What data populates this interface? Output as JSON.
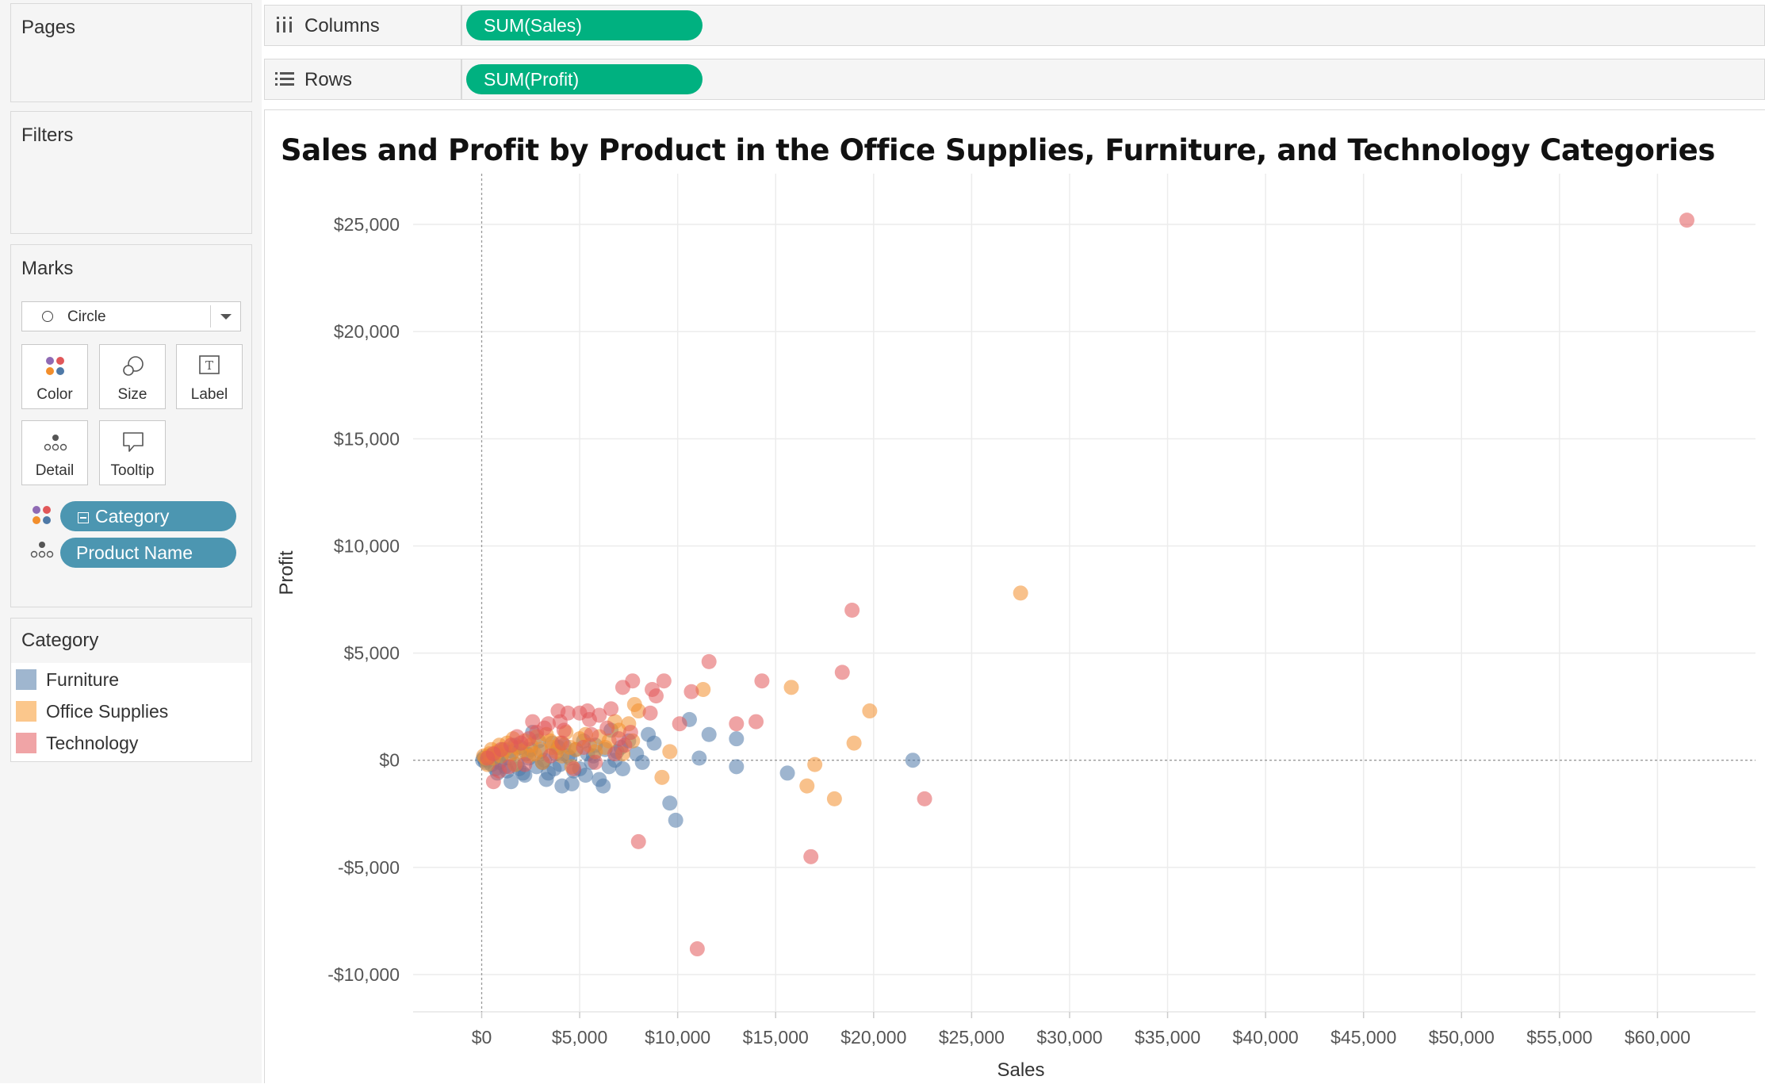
{
  "pages": {
    "title": "Pages"
  },
  "filters": {
    "title": "Filters"
  },
  "marks": {
    "title": "Marks",
    "mark_type": "Circle",
    "buttons": {
      "color": "Color",
      "size": "Size",
      "label": "Label",
      "detail": "Detail",
      "tooltip": "Tooltip"
    },
    "fields": {
      "color_field": "Category",
      "detail_field": "Product Name"
    }
  },
  "legend": {
    "title": "Category",
    "items": [
      {
        "label": "Furniture",
        "color": "#9fb6cf"
      },
      {
        "label": "Office Supplies",
        "color": "#fbc78c"
      },
      {
        "label": "Technology",
        "color": "#f0a4a6"
      }
    ]
  },
  "shelves": {
    "columns_label": "Columns",
    "columns_pill": "SUM(Sales)",
    "rows_label": "Rows",
    "rows_pill": "SUM(Profit)"
  },
  "colors": {
    "furniture": "#4e79a7",
    "office_supplies": "#f28e2b",
    "technology": "#e15759",
    "pill_green": "#00b180",
    "pill_teal": "#4c96b1"
  },
  "chart_data": {
    "type": "scatter",
    "title": "Sales and Profit by Product in the Office Supplies, Furniture, and Technology Categories",
    "xlabel": "Sales",
    "ylabel": "Profit",
    "xlim": [
      -3500,
      65000
    ],
    "ylim": [
      -11000,
      27000
    ],
    "x_ticks": [
      0,
      5000,
      10000,
      15000,
      20000,
      25000,
      30000,
      35000,
      40000,
      45000,
      50000,
      55000,
      60000
    ],
    "x_tick_labels": [
      "$0",
      "$5,000",
      "$10,000",
      "$15,000",
      "$20,000",
      "$25,000",
      "$30,000",
      "$35,000",
      "$40,000",
      "$45,000",
      "$50,000",
      "$55,000",
      "$60,000"
    ],
    "y_ticks": [
      -10000,
      -5000,
      0,
      5000,
      10000,
      15000,
      20000,
      25000
    ],
    "y_tick_labels": [
      "-$10,000",
      "-$5,000",
      "$0",
      "$5,000",
      "$10,000",
      "$15,000",
      "$20,000",
      "$25,000"
    ],
    "grid": true,
    "series": [
      {
        "name": "Furniture",
        "color": "#4e79a7",
        "points": [
          [
            22000,
            0
          ],
          [
            11600,
            1200
          ],
          [
            13000,
            1000
          ],
          [
            13000,
            -300
          ],
          [
            15600,
            -600
          ],
          [
            10600,
            1900
          ],
          [
            11100,
            100
          ],
          [
            9600,
            -2000
          ],
          [
            9900,
            -2800
          ],
          [
            8800,
            800
          ],
          [
            8500,
            1200
          ],
          [
            8200,
            -100
          ],
          [
            7900,
            300
          ],
          [
            7500,
            900
          ],
          [
            7200,
            -400
          ],
          [
            6800,
            0
          ],
          [
            6600,
            1400
          ],
          [
            6300,
            500
          ],
          [
            6000,
            -900
          ],
          [
            6200,
            -1200
          ],
          [
            5800,
            700
          ],
          [
            5600,
            -100
          ],
          [
            5400,
            300
          ],
          [
            5200,
            900
          ],
          [
            5000,
            -400
          ],
          [
            4800,
            500
          ],
          [
            4600,
            -1100
          ],
          [
            4400,
            200
          ],
          [
            4200,
            700
          ],
          [
            4000,
            -200
          ],
          [
            3800,
            300
          ],
          [
            3600,
            800
          ],
          [
            3400,
            -600
          ],
          [
            3200,
            0
          ],
          [
            3000,
            400
          ],
          [
            2800,
            -300
          ],
          [
            2600,
            1300
          ],
          [
            2400,
            100
          ],
          [
            2200,
            -700
          ],
          [
            2000,
            600
          ],
          [
            1800,
            -200
          ],
          [
            1600,
            400
          ],
          [
            1500,
            -1000
          ],
          [
            1400,
            100
          ],
          [
            1200,
            -300
          ],
          [
            1000,
            200
          ],
          [
            900,
            -100
          ],
          [
            800,
            300
          ],
          [
            700,
            -400
          ],
          [
            600,
            100
          ],
          [
            500,
            -200
          ],
          [
            400,
            200
          ],
          [
            300,
            0
          ],
          [
            200,
            -100
          ],
          [
            100,
            100
          ],
          [
            50,
            0
          ],
          [
            3300,
            -900
          ],
          [
            4100,
            -1200
          ],
          [
            5300,
            -700
          ],
          [
            6500,
            -300
          ],
          [
            7100,
            600
          ],
          [
            2900,
            900
          ],
          [
            3700,
            -400
          ],
          [
            4500,
            100
          ],
          [
            2100,
            -600
          ],
          [
            1700,
            700
          ],
          [
            1300,
            -500
          ],
          [
            2500,
            500
          ],
          [
            3100,
            -100
          ],
          [
            3900,
            600
          ],
          [
            4700,
            -500
          ],
          [
            5700,
            200
          ],
          [
            6900,
            400
          ],
          [
            1100,
            500
          ],
          [
            2300,
            300
          ],
          [
            800,
            -600
          ],
          [
            1900,
            -400
          ]
        ]
      },
      {
        "name": "Office Supplies",
        "color": "#f28e2b",
        "points": [
          [
            27500,
            7800
          ],
          [
            15800,
            3400
          ],
          [
            19800,
            2300
          ],
          [
            19000,
            800
          ],
          [
            17000,
            -200
          ],
          [
            16600,
            -1200
          ],
          [
            18000,
            -1800
          ],
          [
            11300,
            3300
          ],
          [
            9600,
            400
          ],
          [
            9200,
            -800
          ],
          [
            8000,
            2300
          ],
          [
            7800,
            2600
          ],
          [
            7500,
            1700
          ],
          [
            7000,
            1400
          ],
          [
            6500,
            900
          ],
          [
            6000,
            1100
          ],
          [
            5500,
            700
          ],
          [
            5000,
            1000
          ],
          [
            4500,
            600
          ],
          [
            4000,
            800
          ],
          [
            3500,
            900
          ],
          [
            3000,
            500
          ],
          [
            2500,
            700
          ],
          [
            2000,
            400
          ],
          [
            1800,
            600
          ],
          [
            1500,
            300
          ],
          [
            1200,
            500
          ],
          [
            1000,
            200
          ],
          [
            800,
            400
          ],
          [
            600,
            100
          ],
          [
            400,
            300
          ],
          [
            200,
            100
          ],
          [
            100,
            200
          ],
          [
            2200,
            900
          ],
          [
            2800,
            1100
          ],
          [
            3300,
            1200
          ],
          [
            3800,
            400
          ],
          [
            4300,
            1300
          ],
          [
            4800,
            500
          ],
          [
            5300,
            1200
          ],
          [
            5800,
            400
          ],
          [
            6300,
            600
          ],
          [
            6800,
            1800
          ],
          [
            7200,
            300
          ],
          [
            1300,
            800
          ],
          [
            1700,
            -200
          ],
          [
            2400,
            200
          ],
          [
            3100,
            -100
          ],
          [
            4100,
            200
          ],
          [
            900,
            700
          ],
          [
            1600,
            1000
          ],
          [
            2700,
            300
          ],
          [
            3600,
            600
          ],
          [
            500,
            500
          ],
          [
            300,
            -200
          ],
          [
            4600,
            -300
          ],
          [
            7700,
            900
          ]
        ]
      },
      {
        "name": "Technology",
        "color": "#e15759",
        "points": [
          [
            61500,
            25200
          ],
          [
            18900,
            7000
          ],
          [
            18400,
            4100
          ],
          [
            22600,
            -1800
          ],
          [
            16800,
            -4500
          ],
          [
            11000,
            -8800
          ],
          [
            8000,
            -3800
          ],
          [
            14300,
            3700
          ],
          [
            14000,
            1800
          ],
          [
            13000,
            1700
          ],
          [
            11600,
            4600
          ],
          [
            10700,
            3200
          ],
          [
            10100,
            1700
          ],
          [
            9300,
            3700
          ],
          [
            8900,
            3000
          ],
          [
            8700,
            3300
          ],
          [
            8600,
            2200
          ],
          [
            7700,
            3700
          ],
          [
            7200,
            3400
          ],
          [
            7000,
            1000
          ],
          [
            6400,
            1500
          ],
          [
            6000,
            2100
          ],
          [
            5500,
            1900
          ],
          [
            5000,
            2200
          ],
          [
            5400,
            2300
          ],
          [
            4400,
            2200
          ],
          [
            4000,
            1800
          ],
          [
            3900,
            2300
          ],
          [
            3400,
            1700
          ],
          [
            3200,
            1500
          ],
          [
            2800,
            1300
          ],
          [
            2400,
            1000
          ],
          [
            2000,
            800
          ],
          [
            1500,
            700
          ],
          [
            1000,
            500
          ],
          [
            600,
            300
          ],
          [
            300,
            100
          ],
          [
            600,
            -1000
          ],
          [
            900,
            -500
          ],
          [
            1400,
            -300
          ],
          [
            4100,
            800
          ],
          [
            4700,
            -400
          ],
          [
            5800,
            -100
          ],
          [
            6800,
            300
          ],
          [
            7600,
            1300
          ],
          [
            2600,
            1800
          ],
          [
            4200,
            1400
          ],
          [
            5200,
            600
          ],
          [
            6600,
            2400
          ],
          [
            1800,
            1100
          ],
          [
            3500,
            200
          ],
          [
            5600,
            1200
          ],
          [
            7300,
            700
          ],
          [
            2200,
            -200
          ]
        ]
      }
    ]
  }
}
